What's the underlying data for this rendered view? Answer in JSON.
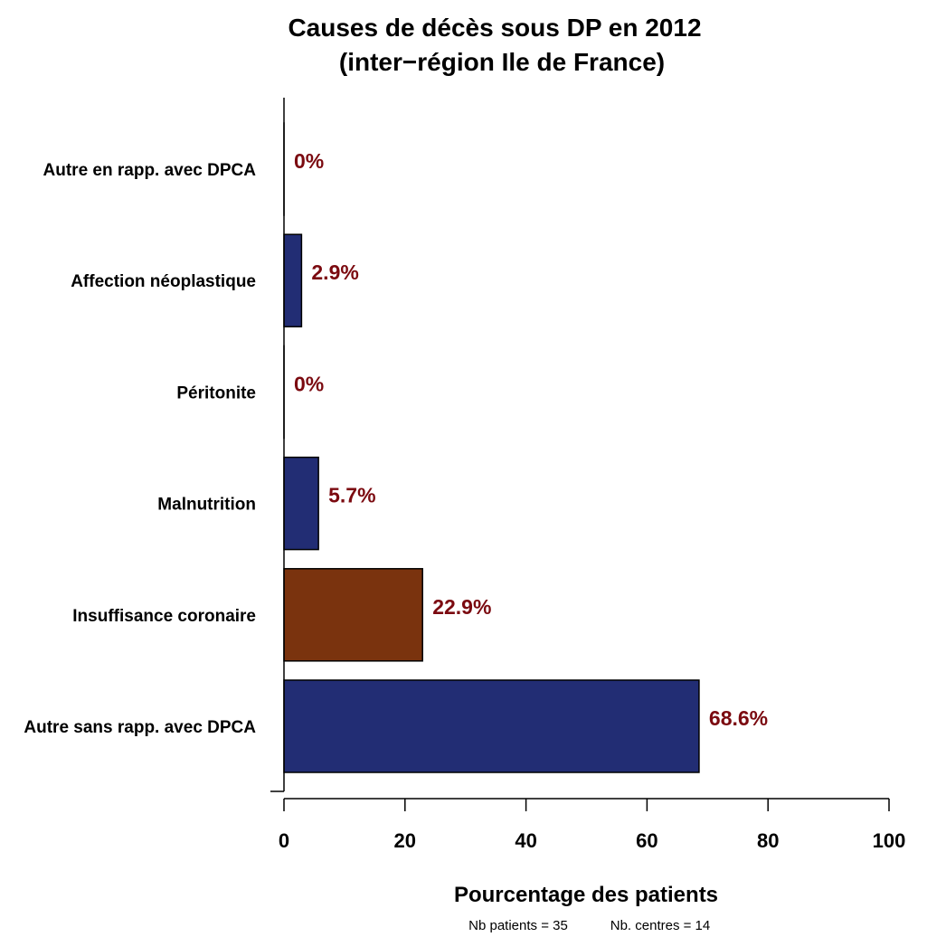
{
  "chart_data": {
    "type": "bar",
    "orientation": "horizontal",
    "title": "Causes de décès sous DP en 2012",
    "subtitle": "(inter−région Ile de France)",
    "xlabel": "Pourcentage des patients",
    "ylabel": "",
    "xlim": [
      0,
      100
    ],
    "xticks": [
      "0",
      "20",
      "40",
      "60",
      "80",
      "100"
    ],
    "categories": [
      "Autre sans rapp. avec DPCA",
      "Insuffisance coronaire",
      "Malnutrition",
      "Péritonite",
      "Affection néoplastique",
      "Autre en rapp. avec DPCA"
    ],
    "values": [
      68.6,
      22.9,
      5.7,
      0,
      2.9,
      0
    ],
    "value_labels": [
      "68.6%",
      "22.9%",
      "5.7%",
      "0%",
      "2.9%",
      "0%"
    ],
    "bar_colors": [
      "#222d74",
      "#7a330e",
      "#222d74",
      "#222d74",
      "#222d74",
      "#222d74"
    ],
    "label_color": "#7b0a10",
    "footnote": {
      "patients": "Nb patients =  35",
      "centres": "Nb. centres =  14"
    }
  }
}
